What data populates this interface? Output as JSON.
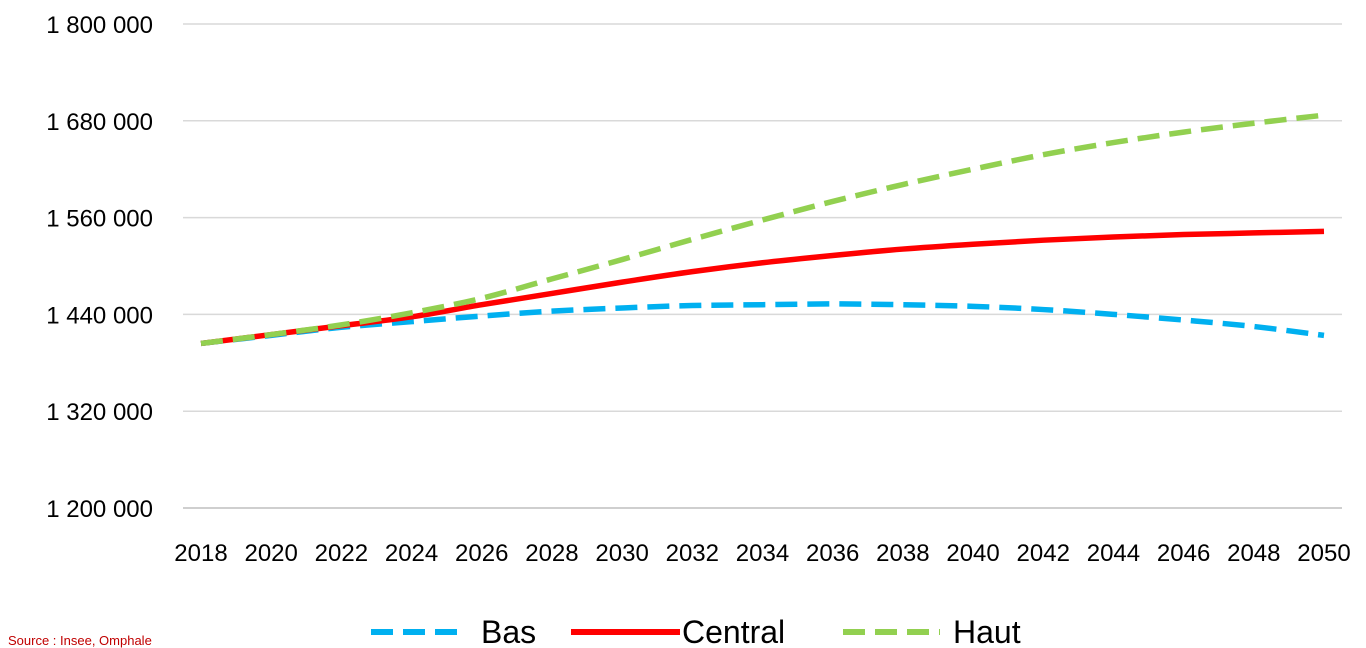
{
  "chart_data": {
    "type": "line",
    "title": "",
    "xlabel": "",
    "ylabel": "",
    "ylim": [
      1200000,
      1800000
    ],
    "yticks": [
      "1 200 000",
      "1 320 000",
      "1 440 000",
      "1 560 000",
      "1 680 000",
      "1 800 000"
    ],
    "ytick_values": [
      1200000,
      1320000,
      1440000,
      1560000,
      1680000,
      1800000
    ],
    "xticks": [
      "2018",
      "2020",
      "2022",
      "2024",
      "2026",
      "2028",
      "2030",
      "2032",
      "2034",
      "2036",
      "2038",
      "2040",
      "2042",
      "2044",
      "2046",
      "2048",
      "2050"
    ],
    "grid": "horizontal",
    "legend_position": "bottom",
    "series": [
      {
        "name": "Bas",
        "color": "#00b0f0",
        "style": "dashed",
        "x": [
          2018,
          2020,
          2022,
          2024,
          2026,
          2028,
          2030,
          2032,
          2034,
          2036,
          2038,
          2040,
          2042,
          2044,
          2046,
          2048,
          2050
        ],
        "values": [
          1404000,
          1414000,
          1424000,
          1431000,
          1438000,
          1444000,
          1448000,
          1451000,
          1452000,
          1453000,
          1452000,
          1450000,
          1446000,
          1440000,
          1433000,
          1425000,
          1414000
        ]
      },
      {
        "name": "Central",
        "color": "#ff0000",
        "style": "solid",
        "x": [
          2018,
          2020,
          2022,
          2024,
          2026,
          2028,
          2030,
          2032,
          2034,
          2036,
          2038,
          2040,
          2042,
          2044,
          2046,
          2048,
          2050
        ],
        "values": [
          1404000,
          1415000,
          1426000,
          1437000,
          1452000,
          1466000,
          1480000,
          1493000,
          1504000,
          1513000,
          1521000,
          1527000,
          1532000,
          1536000,
          1539000,
          1541000,
          1543000
        ]
      },
      {
        "name": "Haut",
        "color": "#92d050",
        "style": "dashed",
        "x": [
          2018,
          2020,
          2022,
          2024,
          2026,
          2028,
          2030,
          2032,
          2034,
          2036,
          2038,
          2040,
          2042,
          2044,
          2046,
          2048,
          2050
        ],
        "values": [
          1404000,
          1415000,
          1427000,
          1442000,
          1460000,
          1484000,
          1508000,
          1533000,
          1557000,
          1580000,
          1601000,
          1620000,
          1638000,
          1653000,
          1666000,
          1677000,
          1687000
        ]
      }
    ]
  },
  "source": "Source : Insee, Omphale"
}
